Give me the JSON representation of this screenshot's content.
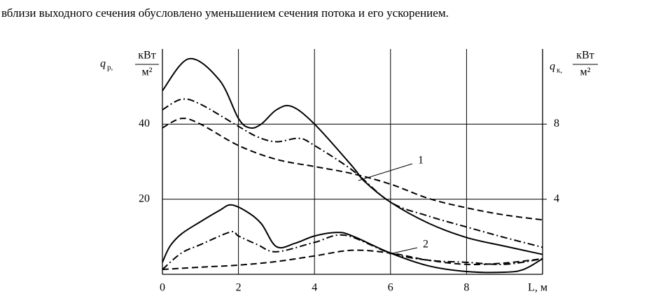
{
  "caption_text": "вблизи выходного сечения обусловлено уменьшением сечения потока и его ускорением.",
  "chart_data": {
    "type": "line",
    "ylabel": {
      "symbol": "q",
      "subscript": "р,",
      "numerator": "кВт",
      "denominator": "м²"
    },
    "y2label": {
      "symbol": "q",
      "subscript": "к,",
      "numerator": "кВт",
      "denominator": "м²"
    },
    "xlabel": "L, м",
    "xlim": [
      0,
      10
    ],
    "xticks": [
      0,
      2,
      4,
      6,
      8
    ],
    "ylim": [
      0,
      60
    ],
    "yticks": [
      20,
      40
    ],
    "y2lim": [
      0,
      12
    ],
    "y2ticks": [
      4,
      8
    ],
    "grid": true,
    "annotations": [
      "1",
      "2"
    ],
    "series": [
      {
        "axis": "y",
        "color": "#000000",
        "dash": "solid",
        "x": [
          0,
          0.7,
          1.5,
          2,
          2.3,
          2.6,
          3,
          3.4,
          4,
          5,
          5.3,
          6,
          7,
          8,
          9,
          10
        ],
        "values": [
          48.9,
          57.4,
          51.7,
          41.5,
          39,
          40,
          43.8,
          44.7,
          40,
          28.7,
          24.9,
          19.2,
          13.6,
          9.8,
          7.5,
          5.3
        ]
      },
      {
        "axis": "y",
        "color": "#000000",
        "dash": "dashdot",
        "x": [
          0,
          0.5,
          1,
          2,
          2.5,
          3,
          3.6,
          4,
          5,
          6,
          7,
          8,
          9,
          10
        ],
        "values": [
          43.8,
          46.6,
          45.3,
          39.4,
          36.6,
          35.3,
          36.2,
          34.3,
          27.7,
          19.2,
          15.5,
          12.6,
          9.8,
          7.2
        ]
      },
      {
        "axis": "y",
        "color": "#000000",
        "dash": "dashed",
        "x": [
          0,
          0.5,
          1,
          2,
          3,
          4,
          5,
          6,
          7,
          8,
          9,
          10
        ],
        "values": [
          39,
          41.5,
          40,
          34.3,
          30.6,
          28.7,
          26.8,
          24,
          20.2,
          17.7,
          15.8,
          14.5
        ]
      },
      {
        "axis": "y2",
        "color": "#000000",
        "dash": "solid",
        "x": [
          0,
          0.2,
          0.5,
          1,
          1.5,
          1.8,
          2.2,
          2.6,
          3,
          3.5,
          4,
          4.6,
          5,
          6,
          7,
          8,
          9,
          9.5,
          10
        ],
        "values": [
          0.64,
          1.5,
          2.15,
          2.8,
          3.4,
          3.7,
          3.36,
          2.7,
          1.47,
          1.66,
          2.04,
          2.23,
          2.04,
          1.13,
          0.45,
          0.15,
          0.11,
          0.26,
          0.83
        ]
      },
      {
        "axis": "y2",
        "color": "#000000",
        "dash": "dashdot",
        "x": [
          0,
          0.5,
          1,
          1.8,
          2,
          2.5,
          3,
          4,
          4.8,
          6,
          7,
          8,
          9,
          10
        ],
        "values": [
          0.26,
          1.13,
          1.58,
          2.26,
          2.04,
          1.58,
          1.2,
          1.7,
          2.08,
          1.13,
          0.75,
          0.64,
          0.53,
          0.83
        ]
      },
      {
        "axis": "y2",
        "color": "#000000",
        "dash": "dashed",
        "x": [
          0,
          1,
          2,
          3,
          4,
          5,
          6,
          7,
          8,
          9,
          10
        ],
        "values": [
          0.26,
          0.38,
          0.49,
          0.68,
          0.98,
          1.28,
          1.13,
          0.75,
          0.53,
          0.6,
          0.83
        ]
      }
    ]
  }
}
